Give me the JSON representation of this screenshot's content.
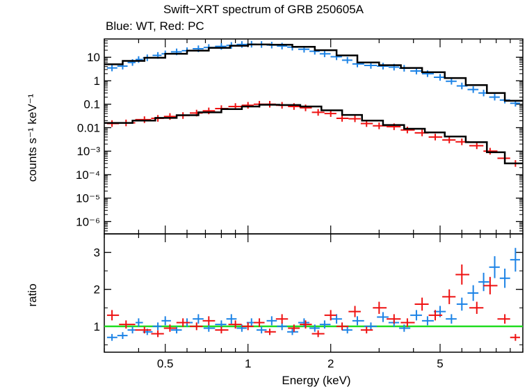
{
  "chart_data": [
    {
      "type": "scatter",
      "title": "Swift−XRT spectrum of GRB 250605A",
      "subtitle": "Blue: WT, Red: PC",
      "xlabel": "",
      "ylabel": "counts s⁻¹ keV⁻¹",
      "xscale": "log",
      "yscale": "log",
      "xlim": [
        0.3,
        10
      ],
      "ylim": [
        3e-07,
        60
      ],
      "x_ticks": [],
      "y_ticks": [
        {
          "value": 10,
          "label": "10"
        },
        {
          "value": 1,
          "label": "1"
        },
        {
          "value": 0.1,
          "label": "0.1"
        },
        {
          "value": 0.01,
          "label": "0.01"
        },
        {
          "value": 0.001,
          "label": "10⁻³"
        },
        {
          "value": 0.0001,
          "label": "10⁻⁴"
        },
        {
          "value": 1e-05,
          "label": "10⁻⁵"
        },
        {
          "value": 1e-06,
          "label": "10⁻⁶"
        }
      ],
      "series": [
        {
          "color": "#1c83e6",
          "mode": "points",
          "x": [
            0.32,
            0.35,
            0.38,
            0.4,
            0.43,
            0.47,
            0.5,
            0.55,
            0.6,
            0.66,
            0.72,
            0.8,
            0.87,
            0.95,
            1.03,
            1.12,
            1.22,
            1.33,
            1.45,
            1.6,
            1.75,
            1.9,
            2.1,
            2.3,
            2.5,
            2.8,
            3.1,
            3.4,
            3.7,
            4.1,
            4.5,
            5.0,
            5.5,
            6.0,
            6.6,
            7.2,
            7.9,
            8.6,
            9.4
          ],
          "y": [
            3.5,
            4.2,
            6.0,
            8.0,
            9.5,
            12,
            14,
            17,
            19,
            23,
            26,
            29,
            32,
            35,
            36,
            35,
            33,
            30,
            27,
            22,
            18,
            14,
            10.5,
            7.5,
            5.2,
            4.5,
            4.2,
            3.8,
            3.4,
            2.6,
            2.0,
            1.4,
            0.95,
            0.6,
            0.42,
            0.3,
            0.2,
            0.15,
            0.11
          ]
        },
        {
          "color": "#ee1111",
          "mode": "points",
          "x": [
            0.32,
            0.36,
            0.42,
            0.47,
            0.52,
            0.58,
            0.65,
            0.72,
            0.8,
            0.9,
            1.0,
            1.1,
            1.2,
            1.33,
            1.47,
            1.62,
            1.8,
            2.0,
            2.2,
            2.45,
            2.7,
            3.0,
            3.4,
            3.8,
            4.3,
            4.8,
            5.4,
            6.0,
            6.8,
            7.6,
            8.6,
            9.4
          ],
          "y": [
            0.015,
            0.016,
            0.022,
            0.025,
            0.03,
            0.033,
            0.042,
            0.052,
            0.065,
            0.08,
            0.09,
            0.1,
            0.1,
            0.09,
            0.08,
            0.07,
            0.045,
            0.04,
            0.025,
            0.024,
            0.015,
            0.012,
            0.011,
            0.008,
            0.006,
            0.004,
            0.003,
            0.0025,
            0.0017,
            0.001,
            0.0005,
            0.0003
          ]
        },
        {
          "color": "#000000",
          "mode": "step",
          "x": [
            0.3,
            0.35,
            0.42,
            0.5,
            0.6,
            0.72,
            0.86,
            1.0,
            1.2,
            1.45,
            1.75,
            2.1,
            2.5,
            3.0,
            3.6,
            4.3,
            5.2,
            6.2,
            7.4,
            8.6,
            10
          ],
          "y": [
            5,
            7,
            9.5,
            14,
            19,
            25,
            31,
            35,
            34,
            28,
            20,
            12,
            6,
            4.6,
            3.5,
            2.3,
            1.3,
            0.65,
            0.3,
            0.14,
            0.1
          ]
        },
        {
          "color": "#000000",
          "mode": "step",
          "x": [
            0.3,
            0.38,
            0.46,
            0.55,
            0.66,
            0.8,
            0.95,
            1.1,
            1.3,
            1.55,
            1.85,
            2.2,
            2.6,
            3.1,
            3.7,
            4.4,
            5.2,
            6.2,
            7.4,
            8.6,
            10
          ],
          "y": [
            0.016,
            0.02,
            0.026,
            0.034,
            0.045,
            0.062,
            0.08,
            0.095,
            0.092,
            0.08,
            0.055,
            0.035,
            0.02,
            0.013,
            0.009,
            0.0063,
            0.0042,
            0.0024,
            0.0009,
            0.0003,
            0.0002
          ]
        }
      ]
    },
    {
      "type": "scatter",
      "title": "",
      "xlabel": "Energy (keV)",
      "ylabel": "ratio",
      "xscale": "log",
      "yscale": "linear",
      "xlim": [
        0.3,
        10
      ],
      "ylim": [
        0.3,
        3.5
      ],
      "x_ticks": [
        {
          "value": 0.5,
          "label": "0.5"
        },
        {
          "value": 1,
          "label": "1"
        },
        {
          "value": 2,
          "label": "2"
        },
        {
          "value": 5,
          "label": "5"
        }
      ],
      "y_ticks": [
        {
          "value": 1,
          "label": "1"
        },
        {
          "value": 2,
          "label": "2"
        },
        {
          "value": 3,
          "label": "3"
        }
      ],
      "reference_line": {
        "value": 1,
        "color": "#22dd22"
      },
      "series": [
        {
          "color": "#1c83e6",
          "mode": "points",
          "x": [
            0.32,
            0.35,
            0.38,
            0.4,
            0.43,
            0.47,
            0.5,
            0.55,
            0.6,
            0.66,
            0.72,
            0.8,
            0.87,
            0.95,
            1.03,
            1.12,
            1.22,
            1.33,
            1.45,
            1.6,
            1.75,
            1.9,
            2.1,
            2.3,
            2.5,
            2.8,
            3.1,
            3.4,
            3.7,
            4.1,
            4.5,
            5.0,
            5.5,
            6.0,
            6.6,
            7.2,
            7.9,
            8.6,
            9.4
          ],
          "y": [
            0.7,
            0.75,
            0.9,
            1.1,
            0.85,
            1.0,
            1.15,
            0.9,
            1.1,
            1.2,
            0.95,
            1.05,
            1.2,
            0.95,
            1.1,
            0.9,
            1.15,
            1.0,
            0.85,
            1.1,
            0.95,
            1.05,
            1.2,
            0.9,
            1.15,
            1.0,
            1.25,
            1.1,
            0.95,
            1.3,
            1.15,
            1.4,
            1.2,
            1.6,
            1.9,
            2.2,
            2.6,
            2.3,
            2.8
          ]
        },
        {
          "color": "#ee1111",
          "mode": "points",
          "x": [
            0.32,
            0.36,
            0.42,
            0.47,
            0.52,
            0.58,
            0.65,
            0.72,
            0.8,
            0.9,
            1.0,
            1.1,
            1.2,
            1.33,
            1.47,
            1.62,
            1.8,
            2.0,
            2.2,
            2.45,
            2.7,
            3.0,
            3.4,
            3.8,
            4.3,
            4.8,
            5.4,
            6.0,
            6.8,
            7.6,
            8.6,
            9.4
          ],
          "y": [
            1.3,
            1.05,
            0.9,
            0.8,
            0.95,
            1.1,
            1.0,
            1.15,
            0.9,
            1.05,
            1.0,
            1.1,
            0.85,
            1.2,
            0.95,
            1.05,
            0.8,
            1.3,
            1.0,
            1.4,
            0.9,
            1.5,
            1.2,
            1.1,
            1.6,
            1.3,
            1.8,
            2.4,
            1.5,
            2.1,
            1.2,
            0.7
          ]
        }
      ]
    }
  ]
}
